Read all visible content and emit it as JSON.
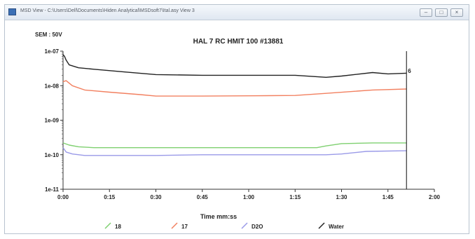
{
  "window": {
    "title": "MSD View - C:\\Users\\Dell\\Documents\\Hiden Analytical\\MSDsoft7\\Ital.asy View 3",
    "buttons": {
      "minimize": "–",
      "maximize": "□",
      "close": "×"
    }
  },
  "detector_label": "SEM : 50V",
  "chart_data": {
    "type": "line",
    "title": "HAL 7 RC HMIT 100 #13881",
    "xlabel": "Time mm:ss",
    "ylabel": "",
    "x_unit": "minutes",
    "xlim": [
      0,
      120
    ],
    "ylim": [
      1e-11,
      1e-07
    ],
    "y_scale": "log",
    "x_ticks": [
      0,
      15,
      30,
      45,
      60,
      75,
      90,
      105,
      120
    ],
    "x_tick_labels": [
      "0:00",
      "0:15",
      "0:30",
      "0:45",
      "1:00",
      "1:15",
      "1:30",
      "1:45",
      "2:00"
    ],
    "y_ticks": [
      1e-07,
      1e-08,
      1e-09,
      1e-10,
      1e-11
    ],
    "y_tick_labels": [
      "1e-07",
      "1e-08",
      "1e-09",
      "1e-10",
      "1e-11"
    ],
    "cursor": {
      "x": 111,
      "label": "6"
    },
    "grid": false,
    "legend_position": "bottom",
    "series": [
      {
        "name": "18",
        "color": "#7fd070",
        "x": [
          0,
          2,
          5,
          10,
          20,
          30,
          45,
          60,
          75,
          82,
          85,
          90,
          100,
          111
        ],
        "y": [
          2.2e-10,
          1.9e-10,
          1.7e-10,
          1.6e-10,
          1.6e-10,
          1.6e-10,
          1.6e-10,
          1.6e-10,
          1.6e-10,
          1.6e-10,
          1.8e-10,
          2.1e-10,
          2.2e-10,
          2.2e-10
        ]
      },
      {
        "name": "17",
        "color": "#f28060",
        "x": [
          0,
          1,
          3,
          7,
          15,
          25,
          30,
          45,
          60,
          75,
          85,
          100,
          111
        ],
        "y": [
          1.3e-08,
          1.4e-08,
          1e-08,
          7.5e-09,
          6.5e-09,
          5.5e-09,
          5e-09,
          5e-09,
          5.1e-09,
          5.2e-09,
          6e-09,
          7.5e-09,
          8e-09
        ]
      },
      {
        "name": "D2O",
        "color": "#9a9ae8",
        "x": [
          0,
          1,
          3,
          7,
          15,
          30,
          45,
          60,
          75,
          85,
          90,
          98,
          111
        ],
        "y": [
          1.6e-10,
          1.2e-10,
          1.05e-10,
          9.5e-11,
          9.5e-11,
          9.5e-11,
          1e-10,
          1e-10,
          1e-10,
          1e-10,
          1.05e-10,
          1.25e-10,
          1.3e-10
        ]
      },
      {
        "name": "Water",
        "color": "#222222",
        "x": [
          0,
          0.5,
          1,
          2,
          5,
          10,
          20,
          30,
          45,
          60,
          75,
          85,
          90,
          100,
          105,
          111
        ],
        "y": [
          8e-08,
          7e-08,
          5.5e-08,
          4e-08,
          3.3e-08,
          3e-08,
          2.5e-08,
          2.1e-08,
          2e-08,
          2e-08,
          2e-08,
          1.75e-08,
          1.9e-08,
          2.4e-08,
          2.2e-08,
          2.3e-08
        ]
      }
    ]
  }
}
